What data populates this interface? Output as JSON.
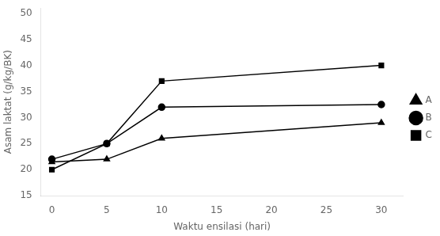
{
  "chart_data": {
    "type": "line",
    "xlabel": "Waktu ensilasi (hari)",
    "ylabel": "Asam laktat (g/kg/BK)",
    "x": [
      0,
      5,
      10,
      30
    ],
    "series": [
      {
        "name": "A",
        "color": "#000000",
        "marker": "triangle",
        "values": [
          21.5,
          22.0,
          26.0,
          29.0
        ]
      },
      {
        "name": "B",
        "color": "#000000",
        "marker": "circle",
        "values": [
          22.0,
          25.0,
          32.0,
          32.5
        ]
      },
      {
        "name": "C",
        "color": "#000000",
        "marker": "square",
        "values": [
          20.0,
          25.0,
          37.0,
          40.0
        ]
      }
    ],
    "xlim": [
      -1.0,
      32
    ],
    "ylim": [
      15,
      51
    ],
    "xticks": [
      0,
      5,
      10,
      15,
      20,
      25,
      30
    ],
    "yticks": [
      15,
      20,
      25,
      30,
      35,
      40,
      45,
      50
    ],
    "grid": false,
    "legend": "right"
  }
}
